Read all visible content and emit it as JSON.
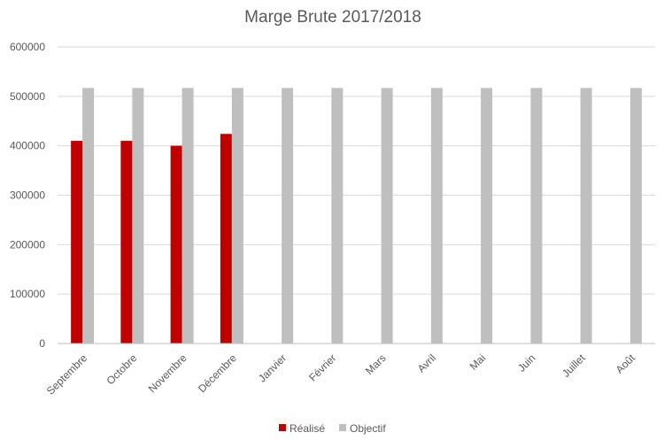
{
  "chart_data": {
    "type": "bar",
    "title": "Marge Brute 2017/2018",
    "categories": [
      "Septembre",
      "Octobre",
      "Novembre",
      "Décembre",
      "Janvier",
      "Février",
      "Mars",
      "Avril",
      "Mai",
      "Juin",
      "Juillet",
      "Août"
    ],
    "series": [
      {
        "name": "Réalisé",
        "color": "#c00000",
        "values": [
          410000,
          410000,
          400000,
          424000,
          null,
          null,
          null,
          null,
          null,
          null,
          null,
          null
        ]
      },
      {
        "name": "Objectif",
        "color": "#bfbfbf",
        "values": [
          517000,
          517000,
          517000,
          517000,
          517000,
          517000,
          517000,
          517000,
          517000,
          517000,
          517000,
          517000
        ]
      }
    ],
    "ylim": [
      0,
      600000
    ],
    "yticks": [
      "0",
      "100000",
      "200000",
      "300000",
      "400000",
      "500000",
      "600000"
    ],
    "grid": true,
    "legend": "bottom"
  }
}
